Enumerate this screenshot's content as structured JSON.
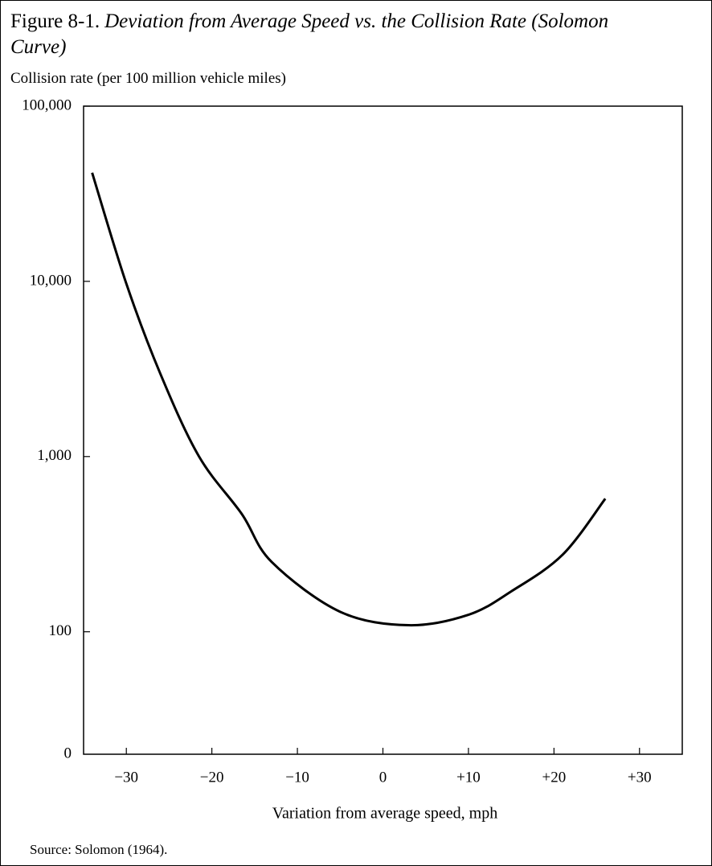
{
  "chart_data": {
    "type": "line",
    "title": "Figure 8-1.",
    "title_italic": "Deviation from Average Speed vs. the Collision Rate (Solomon Curve)",
    "y_label": "Collision rate (per 100 million vehicle miles)",
    "x_label": "Variation from average speed, mph",
    "source": "Source: Solomon (1964).",
    "y_axis_bottom_label": "0",
    "x": [
      -34,
      -30,
      -26,
      -21.5,
      -16.5,
      -13,
      -5,
      3,
      10,
      15,
      21,
      26
    ],
    "series": [
      {
        "name": "Solomon curve",
        "color": "#000000",
        "values": [
          41700,
          9700,
          2950,
          1000,
          470,
          250,
          130,
          109,
          125,
          170,
          275,
          575
        ]
      }
    ],
    "xlim": [
      -35,
      35
    ],
    "xticks": [
      {
        "value": -30,
        "label": "−30"
      },
      {
        "value": -20,
        "label": "−20"
      },
      {
        "value": -10,
        "label": "−10"
      },
      0,
      {
        "value": 10,
        "label": "+10"
      },
      {
        "value": 20,
        "label": "+20"
      },
      {
        "value": 30,
        "label": "+30"
      }
    ],
    "ylim": [
      20,
      100000
    ],
    "yticks": [
      {
        "value": 100,
        "label": "100"
      },
      {
        "value": 1000,
        "label": "1,000"
      },
      {
        "value": 10000,
        "label": "10,000"
      },
      {
        "value": 100000,
        "label": "100,000"
      }
    ],
    "log_y": true,
    "grid": false
  }
}
